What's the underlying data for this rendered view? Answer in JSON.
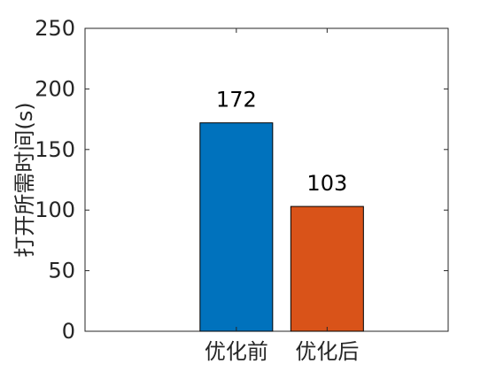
{
  "chart_data": {
    "type": "bar",
    "categories": [
      "优化前",
      "优化后"
    ],
    "values": [
      172,
      103
    ],
    "data_labels": [
      "172",
      "103"
    ],
    "title": "",
    "xlabel": "",
    "ylabel": "打开所需时间(s)",
    "ylim": [
      0,
      250
    ],
    "yticks": [
      0,
      50,
      100,
      150,
      200,
      250
    ],
    "xlim": [
      0,
      3
    ],
    "x_positions": [
      1.25,
      2.0
    ],
    "bar_colors": [
      "#0072BD",
      "#D95319"
    ],
    "grid": false,
    "legend": null
  }
}
